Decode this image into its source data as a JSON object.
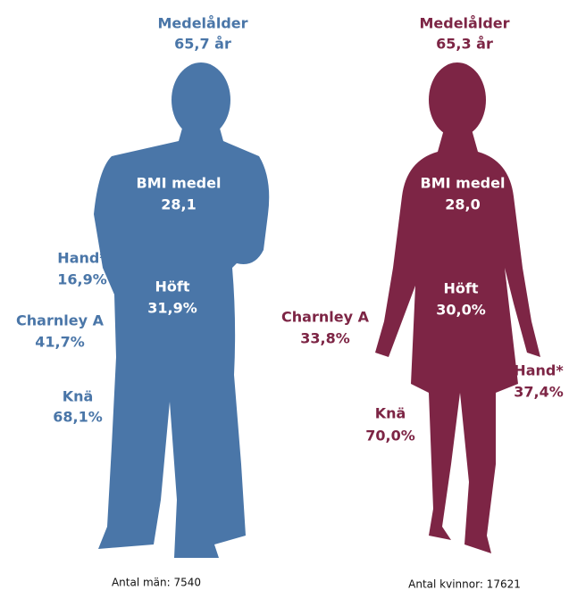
{
  "men": {
    "age_label": "Medelålder",
    "age": "65,7 år",
    "bmi_label": "BMI medel",
    "bmi": "28,1",
    "hand_label": "Hand*",
    "hand": "16,9%",
    "hoft_label": "Höft",
    "hoft": "31,9%",
    "charnley_label": "Charnley A",
    "charnley": "41,7%",
    "kna_label": "Knä",
    "kna": "68,1%",
    "count": "Antal män: 7540"
  },
  "women": {
    "age_label": "Medelålder",
    "age": "65,3 år",
    "bmi_label": "BMI medel",
    "bmi": "28,0",
    "hand_label": "Hand*",
    "hand": "37,4%",
    "hoft_label": "Höft",
    "hoft": "30,0%",
    "charnley_label": "Charnley A",
    "charnley": "33,8%",
    "kna_label": "Knä",
    "kna": "70,0%",
    "count": "Antal kvinnor: 17621"
  }
}
